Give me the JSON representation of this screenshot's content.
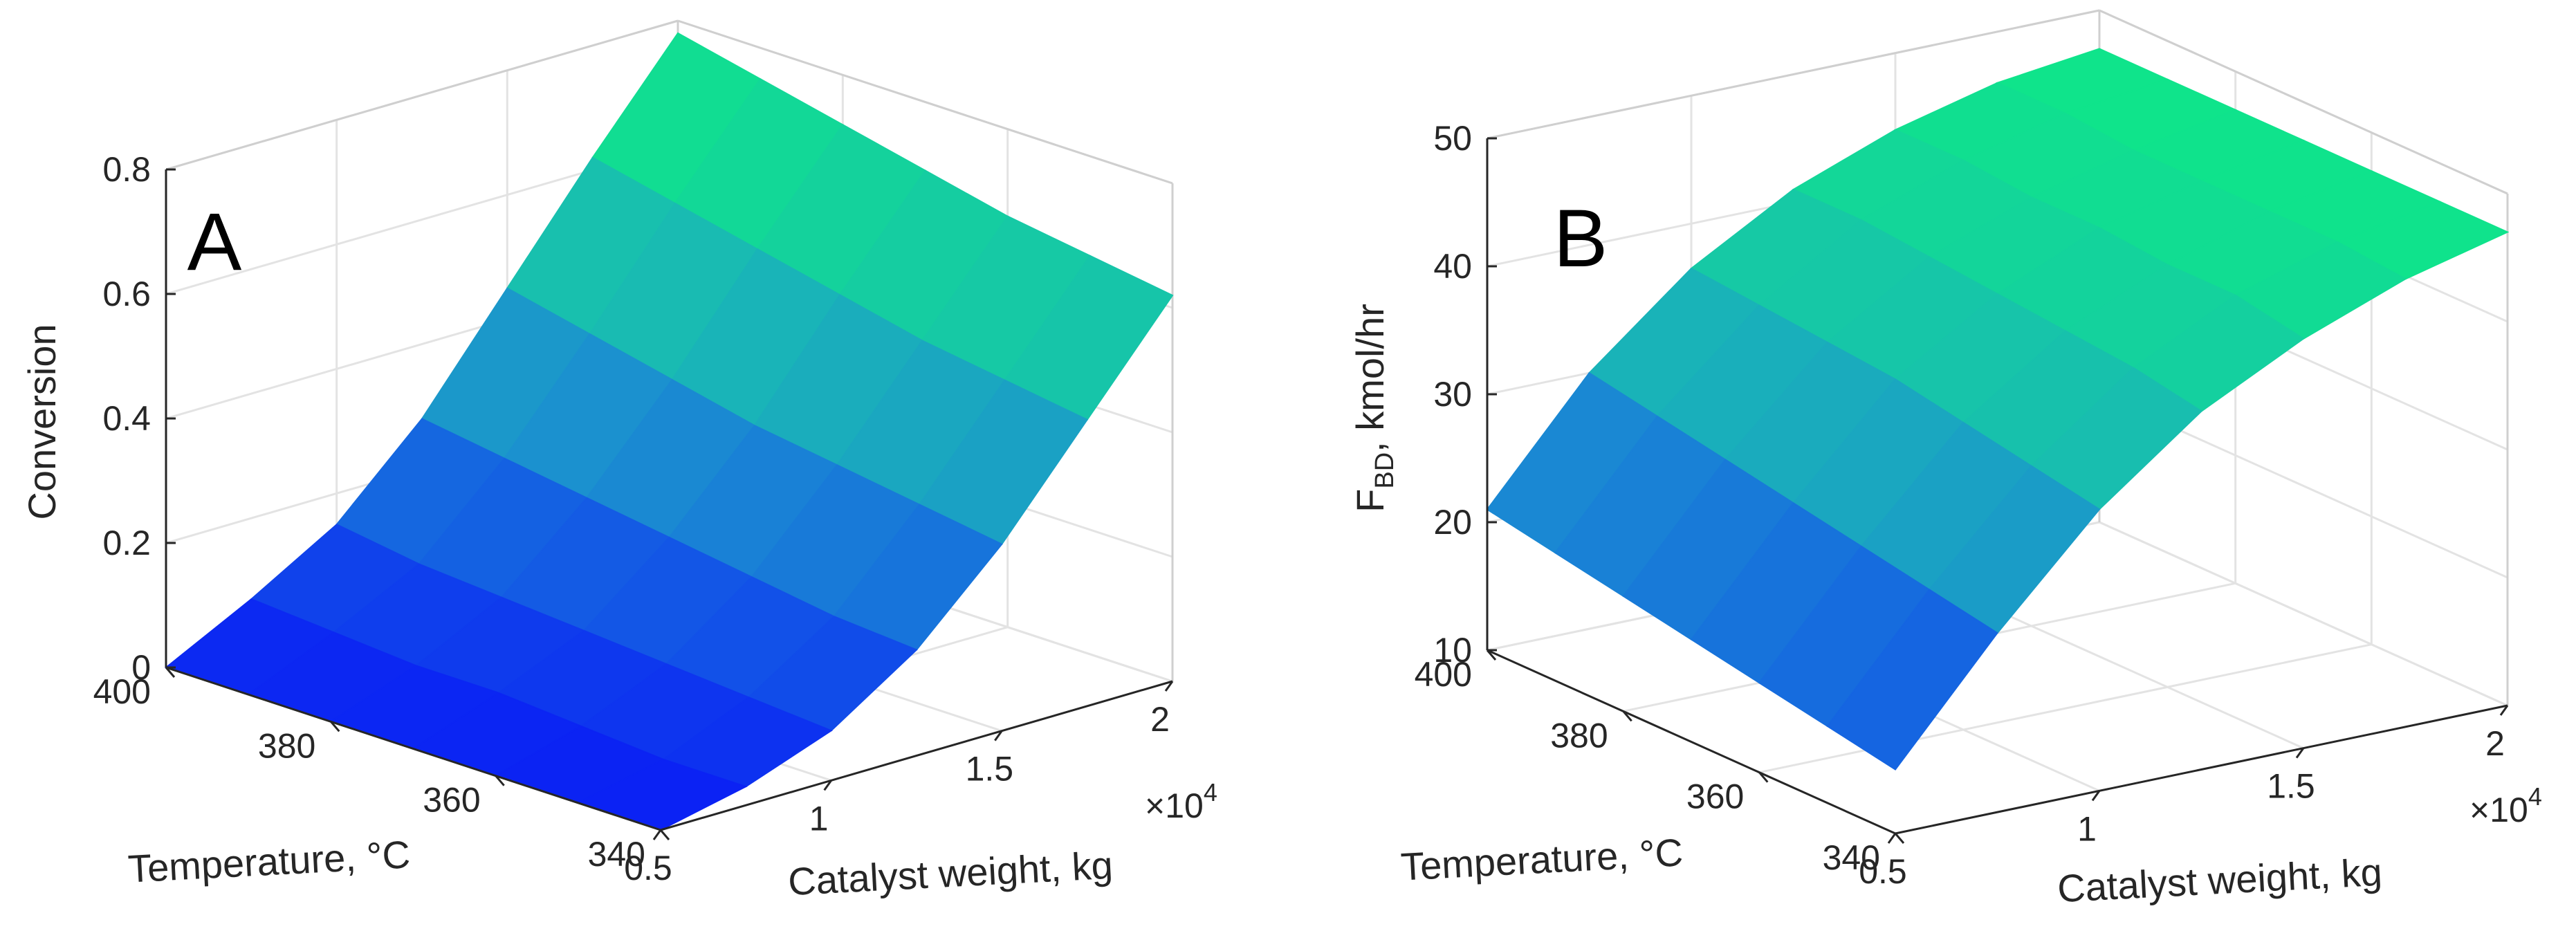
{
  "chart_data": [
    {
      "type": "surface3d",
      "panel_label": "A",
      "title": "",
      "xlabel": "Catalyst weight, kg",
      "ylabel": "Temperature, °C",
      "zlabel": "Conversion",
      "x_multiplier_label": "×10",
      "x_multiplier_exponent": "4",
      "x_ticks": [
        "0.5",
        "1",
        "1.5",
        "2"
      ],
      "x_tick_values": [
        0.5,
        1,
        1.5,
        2
      ],
      "y_ticks": [
        "340",
        "360",
        "380",
        "400"
      ],
      "y_tick_values": [
        340,
        360,
        380,
        400
      ],
      "z_ticks": [
        "0",
        "0.2",
        "0.4",
        "0.6",
        "0.8"
      ],
      "z_tick_values": [
        0,
        0.2,
        0.4,
        0.6,
        0.8
      ],
      "xlim": [
        0.5,
        2
      ],
      "ylim": [
        340,
        400
      ],
      "zlim": [
        0,
        0.8
      ],
      "x": [
        0.5,
        0.75,
        1.0,
        1.25,
        1.5,
        1.75,
        2.0
      ],
      "y": [
        340,
        350,
        360,
        370,
        380,
        390,
        400
      ],
      "z": [
        [
          0.0,
          0.03,
          0.08,
          0.17,
          0.3,
          0.46,
          0.62
        ],
        [
          0.0,
          0.03,
          0.09,
          0.18,
          0.32,
          0.48,
          0.64
        ],
        [
          0.0,
          0.04,
          0.1,
          0.2,
          0.34,
          0.5,
          0.66
        ],
        [
          0.0,
          0.05,
          0.11,
          0.22,
          0.36,
          0.53,
          0.69
        ],
        [
          0.0,
          0.05,
          0.12,
          0.24,
          0.39,
          0.56,
          0.72
        ],
        [
          0.0,
          0.06,
          0.13,
          0.26,
          0.42,
          0.59,
          0.75
        ],
        [
          0.0,
          0.07,
          0.15,
          0.28,
          0.45,
          0.62,
          0.78
        ]
      ],
      "colormap": [
        "#0a1df5",
        "#1357e6",
        "#1b8fd0",
        "#19b9b4",
        "#13d59a",
        "#0cf07f"
      ],
      "grid": true
    },
    {
      "type": "surface3d",
      "panel_label": "B",
      "title": "",
      "xlabel": "Catalyst weight, kg",
      "ylabel": "Temperature, °C",
      "zlabel_main": "F",
      "zlabel_sub": "BD",
      "zlabel_rest": ", kmol/hr",
      "x_multiplier_label": "×10",
      "x_multiplier_exponent": "4",
      "x_ticks": [
        "0.5",
        "1",
        "1.5",
        "2"
      ],
      "x_tick_values": [
        0.5,
        1,
        1.5,
        2
      ],
      "y_ticks": [
        "340",
        "360",
        "380",
        "400"
      ],
      "y_tick_values": [
        340,
        360,
        380,
        400
      ],
      "z_ticks": [
        "10",
        "20",
        "30",
        "40",
        "50"
      ],
      "z_tick_values": [
        10,
        20,
        30,
        40,
        50
      ],
      "xlim": [
        0.5,
        2
      ],
      "ylim": [
        340,
        400
      ],
      "zlim": [
        10,
        50
      ],
      "x": [
        0.5,
        0.75,
        1.0,
        1.25,
        1.5,
        1.75,
        2.0
      ],
      "y": [
        340,
        350,
        360,
        370,
        380,
        390,
        400
      ],
      "z": [
        [
          15,
          24,
          32,
          38,
          42,
          45,
          47
        ],
        [
          16,
          25,
          33,
          39,
          43,
          45.5,
          47
        ],
        [
          17,
          26,
          34,
          39.5,
          43,
          45.5,
          47
        ],
        [
          18,
          27,
          35,
          40,
          43.5,
          45.5,
          47
        ],
        [
          19,
          28,
          35.5,
          40.5,
          43.5,
          45.5,
          47
        ],
        [
          20,
          29,
          36,
          41,
          44,
          46,
          47
        ],
        [
          21,
          30,
          36.5,
          41,
          44,
          46,
          47
        ]
      ],
      "colormap": [
        "#0a1df5",
        "#1357e6",
        "#1b8fd0",
        "#19b9b4",
        "#13d59a",
        "#0cf07f"
      ],
      "grid": true
    }
  ]
}
